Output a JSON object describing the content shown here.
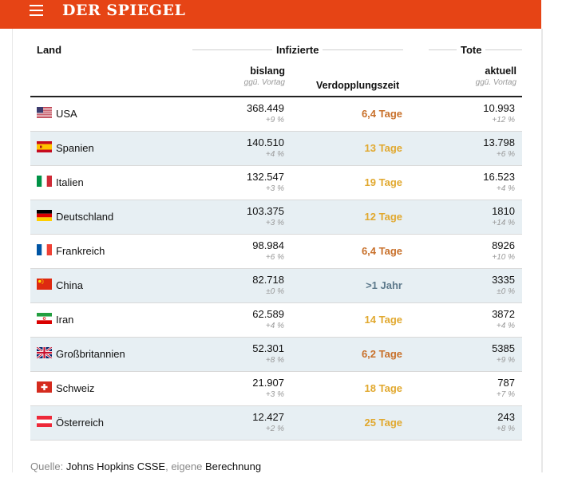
{
  "header": {
    "logo": "DER SPIEGEL",
    "bg_color": "#e64415",
    "menu_icon": "hamburger-menu-icon"
  },
  "table": {
    "col_land": "Land",
    "group_infizierte": "Infizierte",
    "group_tote": "Tote",
    "sub_bislang": "bislang",
    "sub_bislang_note": "ggü. Vortag",
    "sub_verdopplung": "Verdopplungszeit",
    "sub_aktuell": "aktuell",
    "sub_aktuell_note": "ggü. Vortag",
    "doubling_colors": {
      "fast": "#c8702a",
      "medium": "#e1a82e",
      "slow": "#5e7a8c"
    },
    "rows": [
      {
        "flag": "us-flag-icon",
        "country": "USA",
        "infected": "368.449",
        "infected_change": "+9 %",
        "doubling": "6,4 Tage",
        "doubling_speed": "fast",
        "deaths": "10.993",
        "deaths_change": "+12 %"
      },
      {
        "flag": "es-flag-icon",
        "country": "Spanien",
        "infected": "140.510",
        "infected_change": "+4 %",
        "doubling": "13 Tage",
        "doubling_speed": "medium",
        "deaths": "13.798",
        "deaths_change": "+6 %"
      },
      {
        "flag": "it-flag-icon",
        "country": "Italien",
        "infected": "132.547",
        "infected_change": "+3 %",
        "doubling": "19 Tage",
        "doubling_speed": "medium",
        "deaths": "16.523",
        "deaths_change": "+4 %"
      },
      {
        "flag": "de-flag-icon",
        "country": "Deutschland",
        "infected": "103.375",
        "infected_change": "+3 %",
        "doubling": "12 Tage",
        "doubling_speed": "medium",
        "deaths": "1810",
        "deaths_change": "+14 %"
      },
      {
        "flag": "fr-flag-icon",
        "country": "Frankreich",
        "infected": "98.984",
        "infected_change": "+6 %",
        "doubling": "6,4 Tage",
        "doubling_speed": "fast",
        "deaths": "8926",
        "deaths_change": "+10 %"
      },
      {
        "flag": "cn-flag-icon",
        "country": "China",
        "infected": "82.718",
        "infected_change": "±0 %",
        "doubling": ">1 Jahr",
        "doubling_speed": "slow",
        "deaths": "3335",
        "deaths_change": "±0 %"
      },
      {
        "flag": "ir-flag-icon",
        "country": "Iran",
        "infected": "62.589",
        "infected_change": "+4 %",
        "doubling": "14 Tage",
        "doubling_speed": "medium",
        "deaths": "3872",
        "deaths_change": "+4 %"
      },
      {
        "flag": "gb-flag-icon",
        "country": "Großbritannien",
        "infected": "52.301",
        "infected_change": "+8 %",
        "doubling": "6,2 Tage",
        "doubling_speed": "fast",
        "deaths": "5385",
        "deaths_change": "+9 %"
      },
      {
        "flag": "ch-flag-icon",
        "country": "Schweiz",
        "infected": "21.907",
        "infected_change": "+3 %",
        "doubling": "18 Tage",
        "doubling_speed": "medium",
        "deaths": "787",
        "deaths_change": "+7 %"
      },
      {
        "flag": "at-flag-icon",
        "country": "Österreich",
        "infected": "12.427",
        "infected_change": "+2 %",
        "doubling": "25 Tage",
        "doubling_speed": "medium",
        "deaths": "243",
        "deaths_change": "+8 %"
      }
    ]
  },
  "source": {
    "prefix": "Quelle: ",
    "link1": "Johns Hopkins CSSE",
    "sep": ", eigene ",
    "link2": "Berechnung"
  }
}
